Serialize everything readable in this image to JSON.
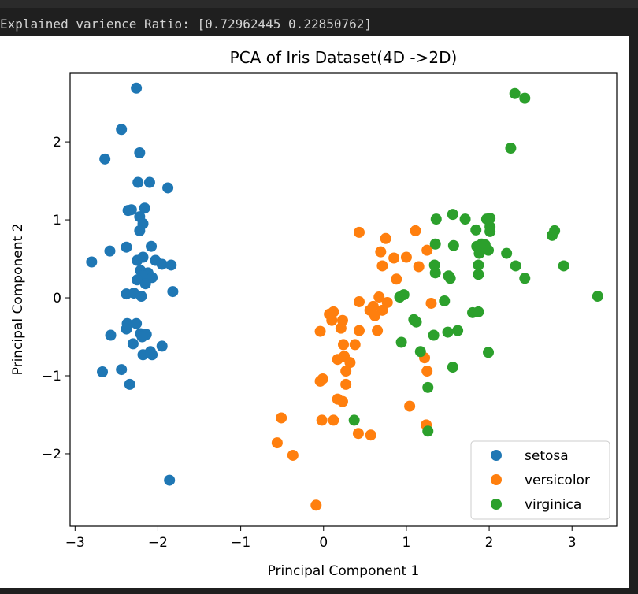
{
  "console": {
    "output_text": "Explained varience Ratio: [0.72962445 0.22850762]"
  },
  "chart_data": {
    "type": "scatter",
    "title": "PCA of Iris Dataset(4D ->2D)",
    "xlabel": "Principal Component 1",
    "ylabel": "Principal Component 2",
    "xlim": [
      -3.06,
      3.54
    ],
    "ylim": [
      -2.93,
      2.88
    ],
    "xticks": [
      -3,
      -2,
      -1,
      0,
      1,
      2,
      3
    ],
    "yticks": [
      -2,
      -1,
      0,
      1,
      2
    ],
    "xtick_labels": [
      "−3",
      "−2",
      "−1",
      "0",
      "1",
      "2",
      "3"
    ],
    "ytick_labels": [
      "−2",
      "−1",
      "0",
      "1",
      "2"
    ],
    "grid": false,
    "legend_position": "lower-right",
    "series": [
      {
        "name": "setosa",
        "color": "#1f77b4",
        "points": [
          [
            -2.26,
            2.69
          ],
          [
            -2.44,
            2.16
          ],
          [
            -2.22,
            1.86
          ],
          [
            -2.64,
            1.78
          ],
          [
            -2.24,
            1.48
          ],
          [
            -2.1,
            1.48
          ],
          [
            -1.88,
            1.41
          ],
          [
            -2.32,
            1.13
          ],
          [
            -2.36,
            1.12
          ],
          [
            -2.16,
            1.15
          ],
          [
            -2.22,
            1.04
          ],
          [
            -2.18,
            0.95
          ],
          [
            -2.22,
            0.86
          ],
          [
            -2.8,
            0.46
          ],
          [
            -2.58,
            0.6
          ],
          [
            -2.38,
            0.65
          ],
          [
            -2.08,
            0.66
          ],
          [
            -2.25,
            0.48
          ],
          [
            -2.18,
            0.52
          ],
          [
            -2.03,
            0.48
          ],
          [
            -1.95,
            0.43
          ],
          [
            -1.84,
            0.42
          ],
          [
            -2.21,
            0.35
          ],
          [
            -2.12,
            0.32
          ],
          [
            -2.18,
            0.28
          ],
          [
            -2.07,
            0.26
          ],
          [
            -2.25,
            0.23
          ],
          [
            -2.15,
            0.18
          ],
          [
            -1.82,
            0.08
          ],
          [
            -2.38,
            0.05
          ],
          [
            -2.29,
            0.06
          ],
          [
            -2.2,
            0.02
          ],
          [
            -2.37,
            -0.33
          ],
          [
            -2.26,
            -0.33
          ],
          [
            -2.38,
            -0.4
          ],
          [
            -2.57,
            -0.48
          ],
          [
            -2.21,
            -0.46
          ],
          [
            -2.14,
            -0.47
          ],
          [
            -2.19,
            -0.5
          ],
          [
            -1.95,
            -0.62
          ],
          [
            -2.3,
            -0.59
          ],
          [
            -2.18,
            -0.73
          ],
          [
            -2.09,
            -0.69
          ],
          [
            -2.07,
            -0.73
          ],
          [
            -2.67,
            -0.95
          ],
          [
            -2.44,
            -0.92
          ],
          [
            -2.34,
            -1.11
          ],
          [
            -1.86,
            -2.34
          ]
        ]
      },
      {
        "name": "versicolor",
        "color": "#ff7f0e",
        "points": [
          [
            0.43,
            0.84
          ],
          [
            1.11,
            0.86
          ],
          [
            0.75,
            0.76
          ],
          [
            0.85,
            0.51
          ],
          [
            0.69,
            0.59
          ],
          [
            1.0,
            0.52
          ],
          [
            1.25,
            0.61
          ],
          [
            0.71,
            0.41
          ],
          [
            1.15,
            0.4
          ],
          [
            0.88,
            0.24
          ],
          [
            0.67,
            0.01
          ],
          [
            0.77,
            -0.06
          ],
          [
            0.6,
            -0.11
          ],
          [
            0.43,
            -0.05
          ],
          [
            0.71,
            -0.16
          ],
          [
            0.12,
            -0.18
          ],
          [
            0.07,
            -0.21
          ],
          [
            0.1,
            -0.29
          ],
          [
            0.23,
            -0.29
          ],
          [
            0.56,
            -0.16
          ],
          [
            0.62,
            -0.23
          ],
          [
            1.3,
            -0.07
          ],
          [
            0.21,
            -0.39
          ],
          [
            0.43,
            -0.42
          ],
          [
            -0.04,
            -0.43
          ],
          [
            0.65,
            -0.42
          ],
          [
            0.24,
            -0.6
          ],
          [
            0.38,
            -0.6
          ],
          [
            1.22,
            -0.77
          ],
          [
            0.25,
            -0.75
          ],
          [
            0.17,
            -0.79
          ],
          [
            0.32,
            -0.83
          ],
          [
            0.27,
            -0.94
          ],
          [
            1.25,
            -0.94
          ],
          [
            0.27,
            -1.11
          ],
          [
            -0.01,
            -1.04
          ],
          [
            -0.04,
            -1.07
          ],
          [
            0.17,
            -1.3
          ],
          [
            0.23,
            -1.33
          ],
          [
            1.04,
            -1.39
          ],
          [
            0.12,
            -1.57
          ],
          [
            -0.02,
            -1.57
          ],
          [
            -0.51,
            -1.54
          ],
          [
            0.42,
            -1.74
          ],
          [
            0.57,
            -1.76
          ],
          [
            1.24,
            -1.63
          ],
          [
            -0.56,
            -1.86
          ],
          [
            -0.37,
            -2.02
          ],
          [
            -0.09,
            -2.66
          ]
        ]
      },
      {
        "name": "virginica",
        "color": "#2ca02c",
        "points": [
          [
            2.31,
            2.62
          ],
          [
            2.43,
            2.56
          ],
          [
            2.26,
            1.92
          ],
          [
            1.56,
            1.07
          ],
          [
            1.71,
            1.01
          ],
          [
            1.97,
            1.01
          ],
          [
            2.01,
            1.02
          ],
          [
            1.36,
            1.01
          ],
          [
            1.84,
            0.87
          ],
          [
            2.01,
            0.91
          ],
          [
            2.01,
            0.85
          ],
          [
            2.79,
            0.86
          ],
          [
            2.76,
            0.8
          ],
          [
            1.91,
            0.69
          ],
          [
            1.85,
            0.66
          ],
          [
            1.95,
            0.68
          ],
          [
            1.35,
            0.69
          ],
          [
            1.57,
            0.67
          ],
          [
            1.88,
            0.57
          ],
          [
            1.99,
            0.61
          ],
          [
            2.21,
            0.57
          ],
          [
            1.87,
            0.42
          ],
          [
            1.34,
            0.42
          ],
          [
            2.32,
            0.41
          ],
          [
            2.9,
            0.41
          ],
          [
            1.87,
            0.3
          ],
          [
            1.51,
            0.28
          ],
          [
            1.53,
            0.25
          ],
          [
            2.43,
            0.25
          ],
          [
            1.35,
            0.32
          ],
          [
            0.97,
            0.04
          ],
          [
            0.92,
            0.01
          ],
          [
            3.31,
            0.02
          ],
          [
            1.46,
            -0.04
          ],
          [
            1.09,
            -0.28
          ],
          [
            1.12,
            -0.31
          ],
          [
            1.8,
            -0.19
          ],
          [
            1.87,
            -0.18
          ],
          [
            1.33,
            -0.48
          ],
          [
            1.5,
            -0.44
          ],
          [
            1.62,
            -0.42
          ],
          [
            1.99,
            -0.7
          ],
          [
            1.17,
            -0.69
          ],
          [
            0.94,
            -0.57
          ],
          [
            1.56,
            -0.89
          ],
          [
            1.26,
            -1.15
          ],
          [
            0.37,
            -1.57
          ],
          [
            1.26,
            -1.71
          ]
        ]
      }
    ]
  }
}
